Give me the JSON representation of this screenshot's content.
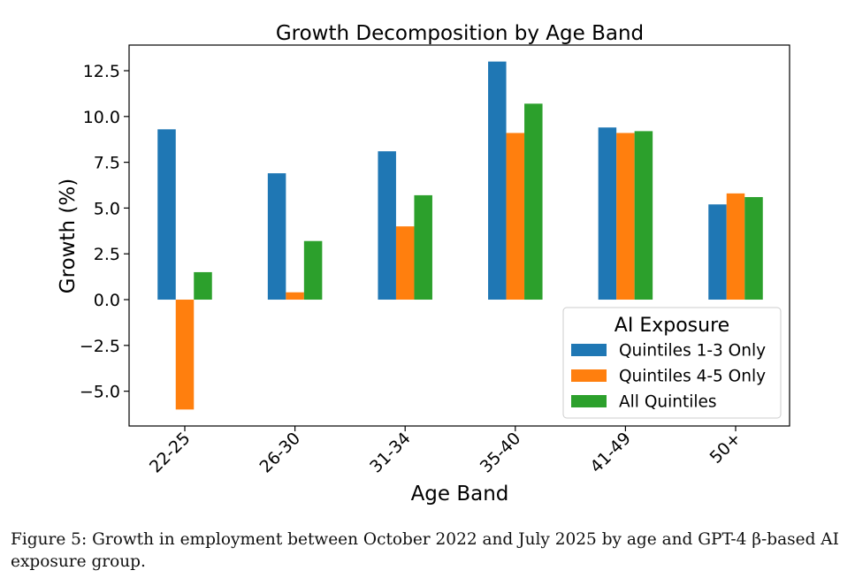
{
  "chart_data": {
    "type": "bar",
    "title": "Growth Decomposition by Age Band",
    "xlabel": "Age Band",
    "ylabel": "Growth (%)",
    "categories": [
      "22-25",
      "26-30",
      "31-34",
      "35-40",
      "41-49",
      "50+"
    ],
    "series": [
      {
        "name": "Quintiles 1-3 Only",
        "color": "#1f77b4",
        "values": [
          9.3,
          6.9,
          8.1,
          13.0,
          9.4,
          5.2
        ]
      },
      {
        "name": "Quintiles 4-5 Only",
        "color": "#ff7f0e",
        "values": [
          -6.0,
          0.4,
          4.0,
          9.1,
          9.1,
          5.8
        ]
      },
      {
        "name": "All Quintiles",
        "color": "#2ca02c",
        "values": [
          1.5,
          3.2,
          5.7,
          10.7,
          9.2,
          5.6
        ]
      }
    ],
    "ylim": [
      -6.9,
      13.9
    ],
    "yticks": [
      -5.0,
      -2.5,
      0.0,
      2.5,
      5.0,
      7.5,
      10.0,
      12.5
    ],
    "ytick_labels": [
      "−5.0",
      "−2.5",
      "0.0",
      "2.5",
      "5.0",
      "7.5",
      "10.0",
      "12.5"
    ],
    "legend": {
      "title": "AI Exposure",
      "position": "lower right"
    },
    "grid": false
  },
  "caption": "Figure 5: Growth in employment between October 2022 and July 2025 by age and GPT-4 β-based AI exposure group."
}
